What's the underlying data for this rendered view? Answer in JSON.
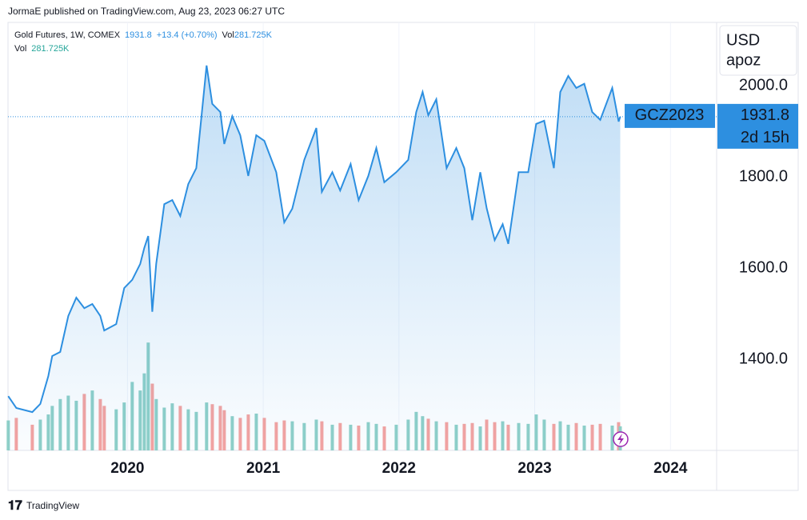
{
  "header": "JormaE published on TradingView.com, Aug 23, 2023 06:27 UTC",
  "footer": "TradingView",
  "chart_data": {
    "type": "area",
    "title": "Gold Futures, 1W, COMEX",
    "legend": {
      "price": 1931.8,
      "change": "+13.4 (+0.70%)",
      "vol_name": "Vol",
      "vol_value": "281.725K"
    },
    "currency": [
      "USD",
      "apoz"
    ],
    "symbol": "GCZ2023",
    "last_price": 1931.8,
    "countdown": "2d 15h",
    "color": "#2d8fe0",
    "up_color": "#8fd0c8",
    "down_color": "#f5a3a0",
    "grid": true,
    "x": [
      2019.122,
      2019.181,
      2019.299,
      2019.358,
      2019.417,
      2019.446,
      2019.505,
      2019.564,
      2019.623,
      2019.682,
      2019.741,
      2019.8,
      2019.829,
      2019.917,
      2019.976,
      2020.035,
      2020.094,
      2020.124,
      2020.153,
      2020.183,
      2020.212,
      2020.271,
      2020.33,
      2020.389,
      2020.448,
      2020.507,
      2020.583,
      2020.625,
      2020.684,
      2020.713,
      2020.772,
      2020.831,
      2020.89,
      2020.949,
      2021.008,
      2021.096,
      2021.155,
      2021.214,
      2021.302,
      2021.391,
      2021.432,
      2021.509,
      2021.567,
      2021.644,
      2021.703,
      2021.774,
      2021.833,
      2021.892,
      2021.98,
      2022.068,
      2022.127,
      2022.174,
      2022.216,
      2022.275,
      2022.351,
      2022.422,
      2022.481,
      2022.54,
      2022.599,
      2022.646,
      2022.705,
      2022.764,
      2022.805,
      2022.882,
      2022.952,
      2023.011,
      2023.07,
      2023.141,
      2023.188,
      2023.247,
      2023.306,
      2023.365,
      2023.424,
      2023.483,
      2023.571,
      2023.618,
      2023.63
    ],
    "values": [
      1319,
      1293,
      1284,
      1302,
      1363,
      1407,
      1416,
      1495,
      1535,
      1512,
      1521,
      1495,
      1463,
      1477,
      1556,
      1574,
      1609,
      1644,
      1670,
      1504,
      1609,
      1740,
      1749,
      1714,
      1784,
      1819,
      2044,
      1960,
      1942,
      1872,
      1933,
      1891,
      1802,
      1891,
      1879,
      1810,
      1700,
      1730,
      1837,
      1907,
      1767,
      1810,
      1770,
      1828,
      1749,
      1802,
      1863,
      1788,
      1810,
      1837,
      1942,
      1986,
      1935,
      1970,
      1819,
      1863,
      1819,
      1705,
      1810,
      1731,
      1661,
      1696,
      1653,
      1810,
      1810,
      1916,
      1923,
      1819,
      1986,
      2021,
      1995,
      2004,
      1942,
      1925,
      1995,
      1921,
      1931.8
    ],
    "volume": [
      350,
      380,
      300,
      360,
      420,
      520,
      600,
      640,
      580,
      660,
      700,
      600,
      520,
      480,
      560,
      800,
      700,
      900,
      1260,
      780,
      600,
      500,
      550,
      520,
      480,
      450,
      560,
      540,
      520,
      470,
      400,
      380,
      420,
      430,
      380,
      330,
      350,
      340,
      320,
      360,
      340,
      300,
      320,
      300,
      290,
      330,
      310,
      280,
      300,
      360,
      450,
      400,
      370,
      340,
      330,
      300,
      310,
      320,
      280,
      360,
      330,
      340,
      300,
      320,
      310,
      420,
      360,
      310,
      340,
      300,
      320,
      290,
      300,
      310,
      290,
      330,
      281.725
    ],
    "vol_lim": [
      0,
      5000
    ],
    "xlim": [
      2019.12,
      2024.34
    ],
    "ylim": [
      1200,
      2138.6
    ],
    "xticks": [
      2020,
      2021,
      2022,
      2023,
      2024
    ],
    "yticks": [
      {
        "value": 1400,
        "label": "1400.0"
      },
      {
        "value": 1600,
        "label": "1600.0"
      },
      {
        "value": 1800,
        "label": "1800.0"
      },
      {
        "value": 2000,
        "label": "2000.0"
      }
    ]
  }
}
